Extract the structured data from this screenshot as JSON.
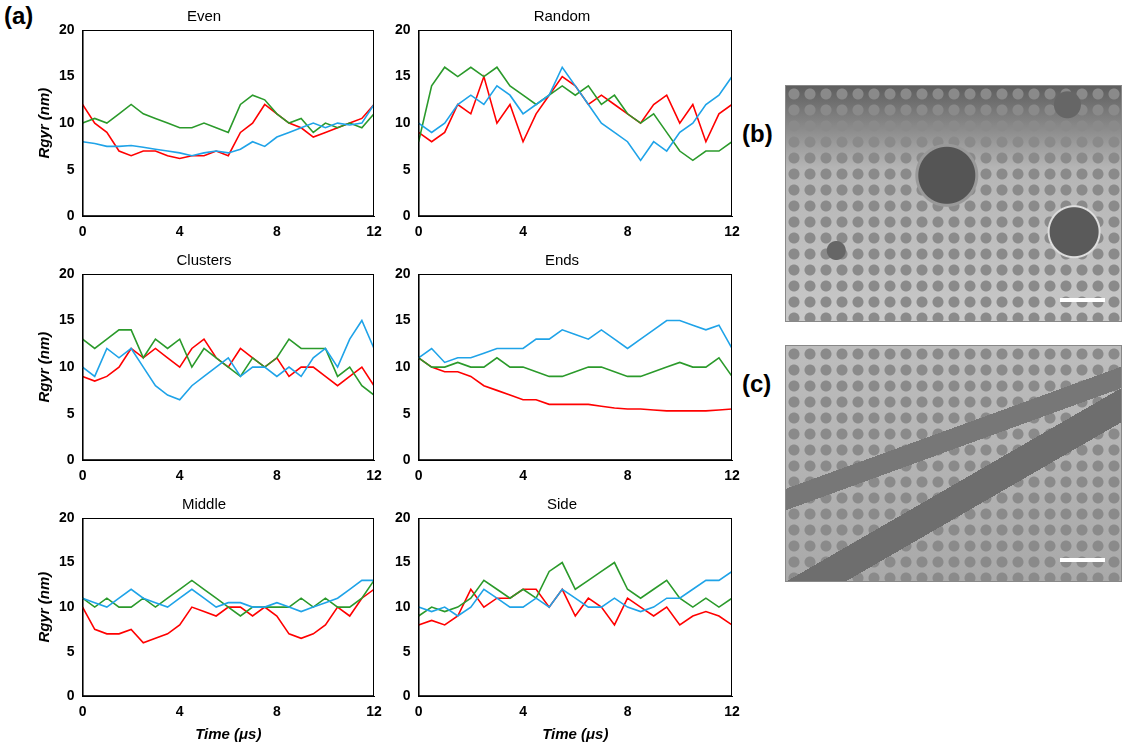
{
  "panel_labels": [
    "(a)",
    "(b)",
    "(c)"
  ],
  "chart_data": [
    {
      "type": "line",
      "title": "Even",
      "ylabel": "Rgyr (nm)",
      "x": [
        0,
        0.5,
        1,
        1.5,
        2,
        2.5,
        3,
        3.5,
        4,
        4.5,
        5,
        5.5,
        6,
        6.5,
        7,
        7.5,
        8,
        8.5,
        9,
        9.5,
        10,
        10.5,
        11,
        11.5,
        12
      ],
      "xlim": [
        0,
        12
      ],
      "xticks": [
        0,
        4,
        8,
        12
      ],
      "ylim": [
        0,
        20
      ],
      "yticks": [
        0,
        5,
        10,
        15,
        20
      ],
      "grid": false,
      "series": [
        {
          "color": "#1fa3e8",
          "values": [
            8,
            7.8,
            7.5,
            7.5,
            7.6,
            7.4,
            7.2,
            7.0,
            6.8,
            6.5,
            6.8,
            7.0,
            6.8,
            7.2,
            8,
            7.5,
            8.5,
            9,
            9.5,
            10,
            9.5,
            10,
            9.8,
            10,
            12
          ]
        },
        {
          "color": "#2b9a2b",
          "values": [
            10,
            10.5,
            10,
            11,
            12,
            11,
            10.5,
            10,
            9.5,
            9.5,
            10,
            9.5,
            9,
            12,
            13,
            12.5,
            11,
            10,
            10.5,
            9,
            10,
            9.5,
            10,
            9.5,
            11
          ]
        },
        {
          "color": "#ff0000",
          "values": [
            12,
            10,
            9,
            7,
            6.5,
            7,
            7,
            6.5,
            6.2,
            6.5,
            6.5,
            7,
            6.5,
            9,
            10,
            12,
            11,
            10,
            9.5,
            8.5,
            9,
            9.5,
            10,
            10.5,
            12
          ]
        }
      ]
    },
    {
      "type": "line",
      "title": "Random",
      "x": [
        0,
        0.5,
        1,
        1.5,
        2,
        2.5,
        3,
        3.5,
        4,
        4.5,
        5,
        5.5,
        6,
        6.5,
        7,
        7.5,
        8,
        8.5,
        9,
        9.5,
        10,
        10.5,
        11,
        11.5,
        12
      ],
      "xlim": [
        0,
        12
      ],
      "xticks": [
        0,
        4,
        8,
        12
      ],
      "ylim": [
        0,
        20
      ],
      "yticks": [
        0,
        5,
        10,
        15,
        20
      ],
      "grid": false,
      "series": [
        {
          "color": "#1fa3e8",
          "values": [
            10,
            9,
            10,
            12,
            13,
            12,
            14,
            13,
            11,
            12,
            13,
            16,
            14,
            12,
            10,
            9,
            8,
            6,
            8,
            7,
            9,
            10,
            12,
            13,
            15
          ]
        },
        {
          "color": "#2b9a2b",
          "values": [
            8,
            14,
            16,
            15,
            16,
            15,
            16,
            14,
            13,
            12,
            13,
            14,
            13,
            14,
            12,
            13,
            11,
            10,
            11,
            9,
            7,
            6,
            7,
            7,
            8
          ]
        },
        {
          "color": "#ff0000",
          "values": [
            9,
            8,
            9,
            12,
            11,
            15,
            10,
            12,
            8,
            11,
            13,
            15,
            14,
            12,
            13,
            12,
            11,
            10,
            12,
            13,
            10,
            12,
            8,
            11,
            12
          ]
        }
      ]
    },
    {
      "type": "line",
      "title": "Clusters",
      "ylabel": "Rgyr (nm)",
      "x": [
        0,
        0.5,
        1,
        1.5,
        2,
        2.5,
        3,
        3.5,
        4,
        4.5,
        5,
        5.5,
        6,
        6.5,
        7,
        7.5,
        8,
        8.5,
        9,
        9.5,
        10,
        10.5,
        11,
        11.5,
        12
      ],
      "xlim": [
        0,
        12
      ],
      "xticks": [
        0,
        4,
        8,
        12
      ],
      "ylim": [
        0,
        20
      ],
      "yticks": [
        0,
        5,
        10,
        15,
        20
      ],
      "grid": false,
      "series": [
        {
          "color": "#1fa3e8",
          "values": [
            10,
            9,
            12,
            11,
            12,
            10,
            8,
            7,
            6.5,
            8,
            9,
            10,
            11,
            9,
            10,
            10,
            9,
            10,
            9,
            11,
            12,
            10,
            13,
            15,
            12
          ]
        },
        {
          "color": "#2b9a2b",
          "values": [
            13,
            12,
            13,
            14,
            14,
            11,
            13,
            12,
            13,
            10,
            12,
            11,
            10,
            9,
            11,
            10,
            11,
            13,
            12,
            12,
            12,
            9,
            10,
            8,
            7
          ]
        },
        {
          "color": "#ff0000",
          "values": [
            9,
            8.5,
            9,
            10,
            12,
            11,
            12,
            11,
            10,
            12,
            13,
            11,
            10,
            12,
            11,
            10,
            11,
            9,
            10,
            10,
            9,
            8,
            9,
            10,
            8
          ]
        }
      ]
    },
    {
      "type": "line",
      "title": "Ends",
      "x": [
        0,
        0.5,
        1,
        1.5,
        2,
        2.5,
        3,
        3.5,
        4,
        4.5,
        5,
        5.5,
        6,
        6.5,
        7,
        7.5,
        8,
        8.5,
        9,
        9.5,
        10,
        10.5,
        11,
        11.5,
        12
      ],
      "xlim": [
        0,
        12
      ],
      "xticks": [
        0,
        4,
        8,
        12
      ],
      "ylim": [
        0,
        20
      ],
      "yticks": [
        0,
        5,
        10,
        15,
        20
      ],
      "grid": false,
      "series": [
        {
          "color": "#1fa3e8",
          "values": [
            11,
            12,
            10.5,
            11,
            11,
            11.5,
            12,
            12,
            12,
            13,
            13,
            14,
            13.5,
            13,
            14,
            13,
            12,
            13,
            14,
            15,
            15,
            14.5,
            14,
            14.5,
            12
          ]
        },
        {
          "color": "#2b9a2b",
          "values": [
            11,
            10,
            10,
            10.5,
            10,
            10,
            11,
            10,
            10,
            9.5,
            9,
            9,
            9.5,
            10,
            10,
            9.5,
            9,
            9,
            9.5,
            10,
            10.5,
            10,
            10,
            11,
            9
          ]
        },
        {
          "color": "#ff0000",
          "values": [
            11,
            10,
            9.5,
            9.5,
            9,
            8,
            7.5,
            7,
            6.5,
            6.5,
            6,
            6,
            6,
            6,
            5.8,
            5.6,
            5.5,
            5.5,
            5.4,
            5.3,
            5.3,
            5.3,
            5.3,
            5.4,
            5.5
          ]
        }
      ]
    },
    {
      "type": "line",
      "title": "Middle",
      "ylabel": "Rgyr (nm)",
      "xlabel": "Time (μs)",
      "x": [
        0,
        0.5,
        1,
        1.5,
        2,
        2.5,
        3,
        3.5,
        4,
        4.5,
        5,
        5.5,
        6,
        6.5,
        7,
        7.5,
        8,
        8.5,
        9,
        9.5,
        10,
        10.5,
        11,
        11.5,
        12
      ],
      "xlim": [
        0,
        12
      ],
      "xticks": [
        0,
        4,
        8,
        12
      ],
      "ylim": [
        0,
        20
      ],
      "yticks": [
        0,
        5,
        10,
        15,
        20
      ],
      "grid": false,
      "series": [
        {
          "color": "#1fa3e8",
          "values": [
            11,
            10.5,
            10,
            11,
            12,
            11,
            10.5,
            10,
            11,
            12,
            11,
            10,
            10.5,
            10.5,
            10,
            10,
            10.5,
            10,
            9.5,
            10,
            10.5,
            11,
            12,
            13,
            13
          ]
        },
        {
          "color": "#2b9a2b",
          "values": [
            11,
            10,
            11,
            10,
            10,
            11,
            10,
            11,
            12,
            13,
            12,
            11,
            10,
            9,
            10,
            10,
            10,
            10,
            11,
            10,
            11,
            10,
            10,
            11,
            13
          ]
        },
        {
          "color": "#ff0000",
          "values": [
            10,
            7.5,
            7,
            7,
            7.5,
            6,
            6.5,
            7,
            8,
            10,
            9.5,
            9,
            10,
            10,
            9,
            10,
            9,
            7,
            6.5,
            7,
            8,
            10,
            9,
            11,
            12
          ]
        }
      ]
    },
    {
      "type": "line",
      "title": "Side",
      "xlabel": "Time (μs)",
      "x": [
        0,
        0.5,
        1,
        1.5,
        2,
        2.5,
        3,
        3.5,
        4,
        4.5,
        5,
        5.5,
        6,
        6.5,
        7,
        7.5,
        8,
        8.5,
        9,
        9.5,
        10,
        10.5,
        11,
        11.5,
        12
      ],
      "xlim": [
        0,
        12
      ],
      "xticks": [
        0,
        4,
        8,
        12
      ],
      "ylim": [
        0,
        20
      ],
      "yticks": [
        0,
        5,
        10,
        15,
        20
      ],
      "grid": false,
      "series": [
        {
          "color": "#1fa3e8",
          "values": [
            10,
            9.5,
            10,
            9,
            10,
            12,
            11,
            10,
            10,
            11,
            10,
            12,
            11,
            10,
            10,
            11,
            10,
            9.5,
            10,
            11,
            11,
            12,
            13,
            13,
            14
          ]
        },
        {
          "color": "#2b9a2b",
          "values": [
            9,
            10,
            9.5,
            10,
            11,
            13,
            12,
            11,
            12,
            11,
            14,
            15,
            12,
            13,
            14,
            15,
            12,
            11,
            12,
            13,
            11,
            10,
            11,
            10,
            11
          ]
        },
        {
          "color": "#ff0000",
          "values": [
            8,
            8.5,
            8,
            9,
            12,
            10,
            11,
            11,
            12,
            12,
            10,
            12,
            9,
            11,
            10,
            8,
            11,
            10,
            9,
            10,
            8,
            9,
            9.5,
            9,
            8
          ]
        }
      ]
    }
  ]
}
